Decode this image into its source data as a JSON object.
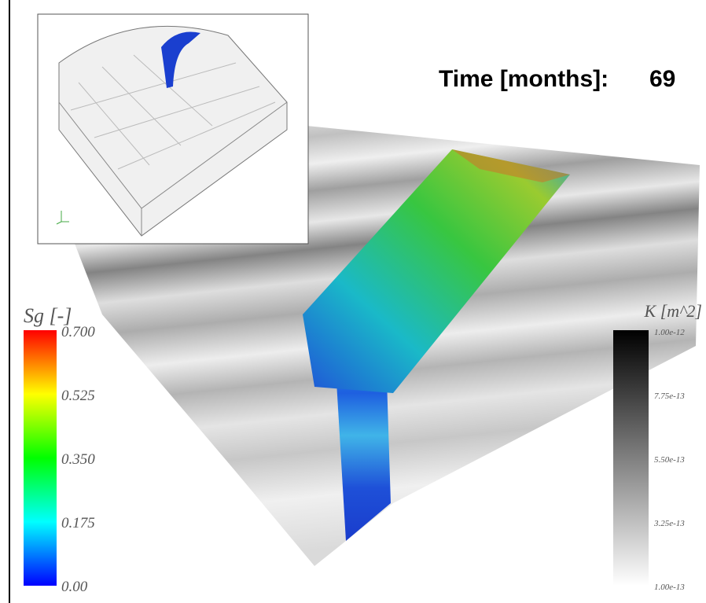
{
  "time": {
    "label": "Time [months]:",
    "value": 69
  },
  "sg_colorbar": {
    "title": "Sg [-]",
    "ticks": [
      "0.700",
      "0.525",
      "0.350",
      "0.175",
      "0.00"
    ]
  },
  "k_colorbar": {
    "title": "K [m^2]",
    "ticks": [
      "1.00e-12",
      "7.75e-13",
      "5.50e-13",
      "3.25e-13",
      "1.00e-13"
    ]
  }
}
